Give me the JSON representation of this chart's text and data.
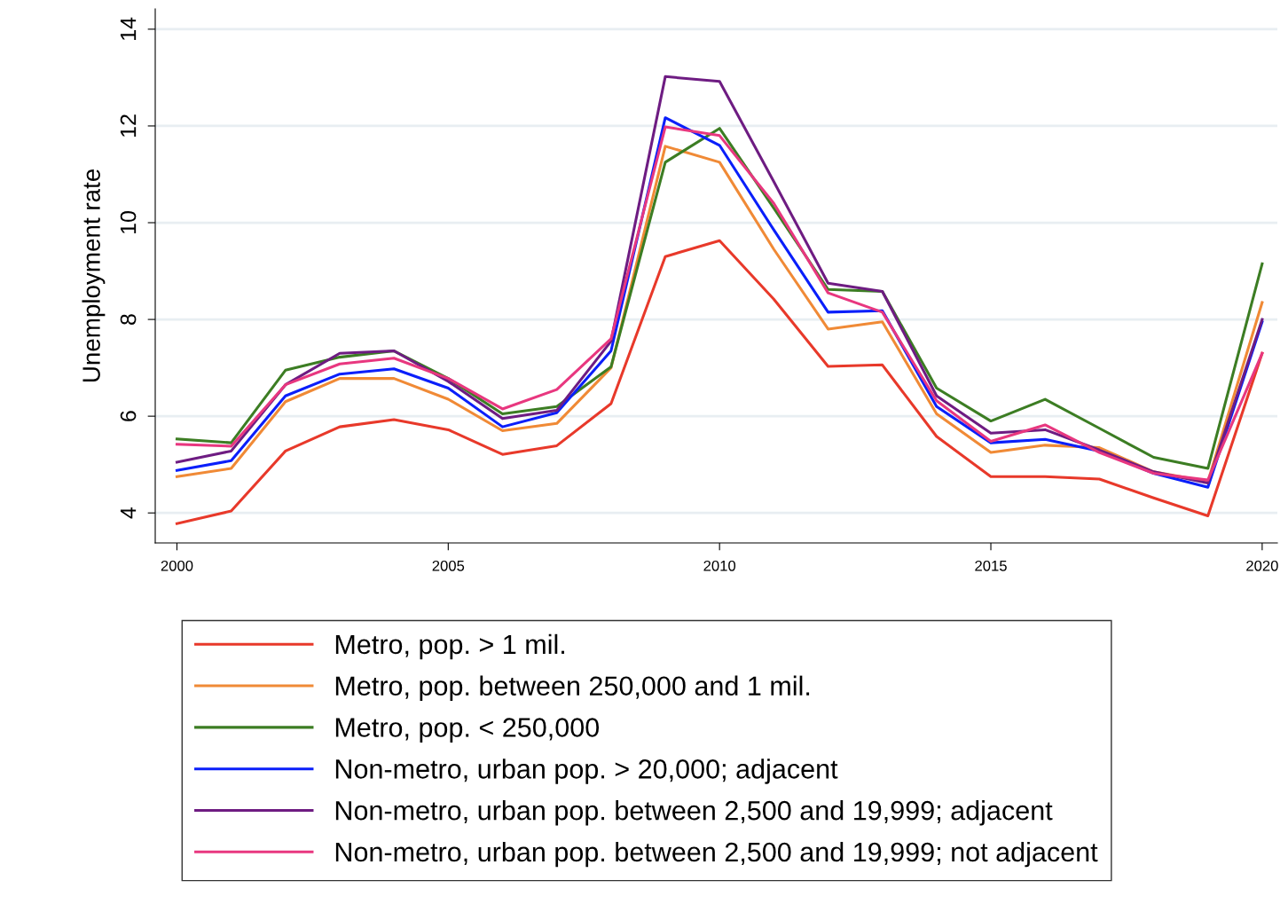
{
  "chart_data": {
    "type": "line",
    "ylabel": "Unemployment rate",
    "x": [
      2000,
      2001,
      2002,
      2003,
      2004,
      2005,
      2006,
      2007,
      2008,
      2009,
      2010,
      2011,
      2012,
      2013,
      2014,
      2015,
      2016,
      2017,
      2018,
      2019,
      2020
    ],
    "series": [
      {
        "name": "Metro, pop. > 1 mil.",
        "color": "#e8392a",
        "values": [
          3.78,
          4.04,
          5.28,
          5.78,
          5.93,
          5.72,
          5.21,
          5.39,
          6.26,
          9.3,
          9.63,
          8.42,
          7.03,
          7.06,
          5.58,
          4.75,
          4.75,
          4.7,
          4.31,
          3.94,
          7.3
        ]
      },
      {
        "name": "Metro, pop. between 250,000 and 1 mil.",
        "color": "#f08a36",
        "values": [
          4.75,
          4.92,
          6.3,
          6.78,
          6.78,
          6.35,
          5.7,
          5.85,
          7.0,
          11.58,
          11.25,
          9.45,
          7.8,
          7.95,
          6.05,
          5.25,
          5.4,
          5.35,
          4.85,
          4.65,
          8.35
        ]
      },
      {
        "name": "Metro, pop. < 250,000",
        "color": "#3c7d23",
        "values": [
          5.53,
          5.45,
          6.95,
          7.22,
          7.35,
          6.78,
          6.05,
          6.2,
          7.02,
          11.25,
          11.95,
          10.3,
          8.62,
          8.58,
          6.58,
          5.9,
          6.35,
          5.75,
          5.15,
          4.92,
          9.15
        ]
      },
      {
        "name": "Non-metro, urban pop. > 20,000; adjacent",
        "color": "#0a1ffa",
        "values": [
          4.88,
          5.08,
          6.42,
          6.87,
          6.98,
          6.58,
          5.78,
          6.07,
          7.35,
          12.17,
          11.6,
          9.85,
          8.15,
          8.18,
          6.2,
          5.45,
          5.52,
          5.28,
          4.82,
          4.53,
          7.95
        ]
      },
      {
        "name": "Non-metro, urban pop. between 2,500 and 19,999; adjacent",
        "color": "#6e1c82",
        "values": [
          5.05,
          5.28,
          6.65,
          7.3,
          7.35,
          6.72,
          5.95,
          6.12,
          7.55,
          13.02,
          12.92,
          10.85,
          8.75,
          8.58,
          6.42,
          5.65,
          5.72,
          5.3,
          4.85,
          4.62,
          8.0
        ]
      },
      {
        "name": "Non-metro, urban pop. between 2,500 and 19,999; not adjacent",
        "color": "#e8377f",
        "values": [
          5.42,
          5.38,
          6.65,
          7.08,
          7.2,
          6.78,
          6.15,
          6.55,
          7.6,
          11.98,
          11.8,
          10.4,
          8.55,
          8.15,
          6.32,
          5.48,
          5.82,
          5.25,
          4.82,
          4.68,
          7.3
        ]
      }
    ],
    "xlim": [
      1999.6,
      2020.28
    ],
    "xticks": [
      2000,
      2005,
      2010,
      2015,
      2020
    ],
    "ylim": [
      3.38,
      14.42
    ],
    "yticks": [
      4,
      6,
      8,
      10,
      12,
      14
    ],
    "grid": "y",
    "legend": "bottom",
    "marker": "none",
    "line_style": "solid"
  }
}
